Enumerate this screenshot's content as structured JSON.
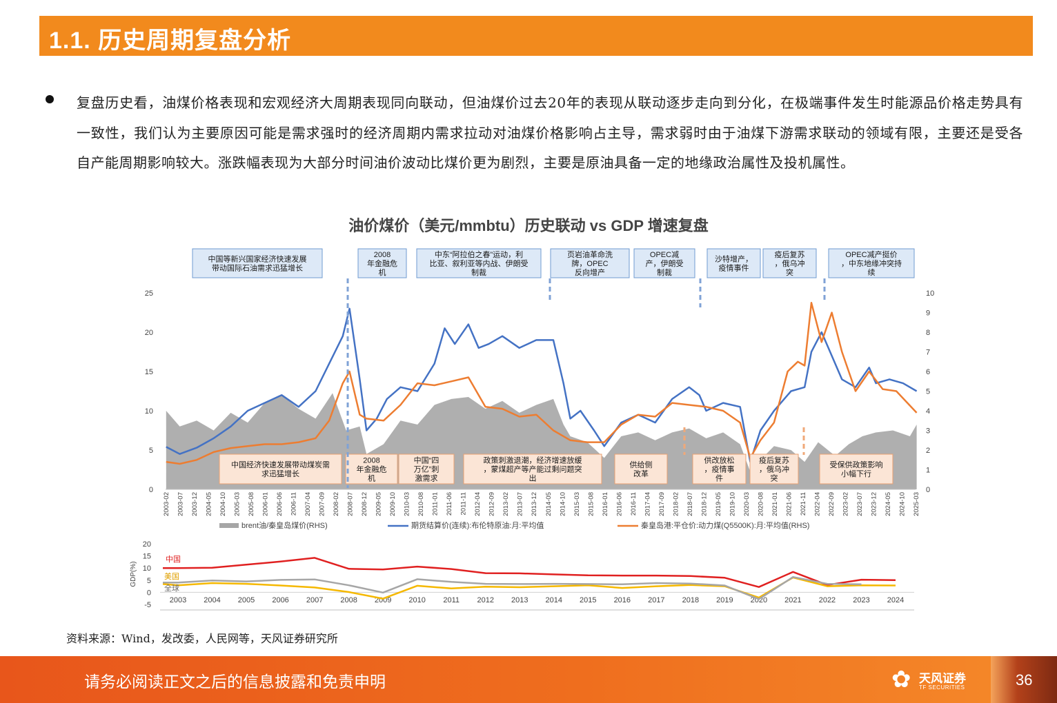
{
  "header": {
    "title": "1.1. 历史周期复盘分析"
  },
  "body": {
    "paragraph": "复盘历史看，油煤价格表现和宏观经济大周期表现同向联动，但油煤价过去20年的表现从联动逐步走向到分化，在极端事件发生时能源品价格走势具有一致性，我们认为主要原因可能是需求强时的经济周期内需求拉动对油煤价格影响占主导，需求弱时由于油煤下游需求联动的领域有限，主要还是受各自产能周期影响较大。涨跌幅表现为大部分时间油价波动比煤价更为剧烈，主要是原油具备一定的地缘政治属性及投机属性。"
  },
  "source": "资料来源：Wind，发改委，人民网等，天风证券研究所",
  "footer": {
    "disclaimer": "请务必阅读正文之后的信息披露和免责申明",
    "brand_cn": "天风证券",
    "brand_en": "TF SECURITIES",
    "page": "36"
  },
  "colors": {
    "accent": "#f28a1d",
    "blue": "#4472c4",
    "orange": "#ed7d31",
    "gray": "#a6a6a6",
    "red": "#e02020",
    "yellow": "#f5b800"
  },
  "chart_data": [
    {
      "type": "line",
      "title": "油价煤价（美元/mmbtu）历史联动 vs GDP 增速复盘",
      "ylim_left": [
        0,
        25
      ],
      "yticks_left": [
        "0",
        "5",
        "10",
        "15",
        "20",
        "25"
      ],
      "ylim_right": [
        0,
        10
      ],
      "yticks_right": [
        "0",
        "1",
        "2",
        "3",
        "4",
        "5",
        "6",
        "7",
        "8",
        "9",
        "10"
      ],
      "xticks": [
        "2003-02",
        "2003-07",
        "2003-12",
        "2004-05",
        "2004-10",
        "2005-03",
        "2005-08",
        "2006-01",
        "2006-06",
        "2006-11",
        "2007-04",
        "2007-09",
        "2008-02",
        "2008-07",
        "2008-12",
        "2009-05",
        "2009-10",
        "2010-03",
        "2010-08",
        "2011-01",
        "2011-06",
        "2011-11",
        "2012-04",
        "2012-09",
        "2013-02",
        "2013-07",
        "2013-12",
        "2014-05",
        "2014-10",
        "2015-03",
        "2015-08",
        "2016-01",
        "2016-06",
        "2016-11",
        "2017-04",
        "2017-09",
        "2018-02",
        "2018-07",
        "2018-12",
        "2019-05",
        "2019-10",
        "2020-03",
        "2020-08",
        "2021-01",
        "2021-06",
        "2021-11",
        "2022-04",
        "2022-09",
        "2023-02",
        "2023-07",
        "2023-12",
        "2024-05",
        "2024-10",
        "2025-03"
      ],
      "series": [
        {
          "name": "brent油/秦皇岛煤价(RHS)",
          "kind": "area",
          "axis": "right",
          "x": [
            2003.1,
            2003.5,
            2004.0,
            2004.5,
            2005.0,
            2005.5,
            2006.0,
            2006.5,
            2007.0,
            2007.5,
            2008.0,
            2008.4,
            2008.8,
            2009.0,
            2009.5,
            2010.0,
            2010.5,
            2011.0,
            2011.5,
            2012.0,
            2012.5,
            2013.0,
            2013.5,
            2014.0,
            2014.5,
            2014.8,
            2015.0,
            2015.5,
            2016.0,
            2016.5,
            2017.0,
            2017.5,
            2018.0,
            2018.5,
            2019.0,
            2019.5,
            2020.0,
            2020.3,
            2020.6,
            2021.0,
            2021.5,
            2021.9,
            2022.3,
            2022.8,
            2023.2,
            2023.6,
            2024.0,
            2024.5,
            2025.0,
            2025.2
          ],
          "values": [
            4.0,
            3.2,
            3.5,
            3.0,
            3.9,
            3.4,
            4.4,
            4.8,
            4.1,
            3.6,
            4.9,
            3.0,
            3.2,
            1.8,
            2.3,
            3.5,
            3.3,
            4.3,
            4.6,
            4.7,
            4.1,
            4.5,
            3.9,
            4.3,
            4.6,
            3.3,
            2.7,
            2.4,
            1.6,
            2.7,
            2.9,
            2.5,
            2.9,
            3.1,
            2.6,
            2.9,
            2.3,
            0.9,
            1.5,
            2.2,
            2.0,
            1.4,
            2.4,
            1.7,
            2.3,
            2.7,
            2.9,
            3.0,
            2.7,
            3.3
          ]
        },
        {
          "name": "期货结算价(连续):布伦特原油:月:平均值",
          "kind": "line",
          "axis": "left",
          "x": [
            2003.1,
            2003.5,
            2004.0,
            2004.5,
            2005.0,
            2005.5,
            2006.0,
            2006.5,
            2007.0,
            2007.5,
            2007.9,
            2008.3,
            2008.5,
            2008.8,
            2009.0,
            2009.3,
            2009.6,
            2010.0,
            2010.5,
            2011.0,
            2011.3,
            2011.6,
            2012.0,
            2012.3,
            2012.6,
            2013.0,
            2013.5,
            2014.0,
            2014.5,
            2014.8,
            2015.0,
            2015.3,
            2015.7,
            2016.0,
            2016.5,
            2017.0,
            2017.5,
            2018.0,
            2018.5,
            2018.8,
            2019.0,
            2019.5,
            2020.0,
            2020.3,
            2020.6,
            2021.0,
            2021.5,
            2021.9,
            2022.1,
            2022.4,
            2022.7,
            2023.0,
            2023.4,
            2023.8,
            2024.0,
            2024.4,
            2024.8,
            2025.2
          ],
          "values": [
            5.4,
            4.5,
            5.3,
            6.5,
            8.0,
            10.0,
            11.0,
            12.0,
            10.5,
            12.5,
            16.0,
            19.5,
            23.0,
            14.0,
            7.5,
            9.0,
            11.5,
            13.0,
            12.5,
            16.0,
            20.5,
            18.5,
            21.0,
            18.0,
            18.5,
            19.5,
            18.0,
            19.0,
            19.0,
            13.5,
            9.0,
            10.0,
            7.5,
            5.5,
            8.5,
            9.5,
            8.5,
            11.5,
            13.0,
            12.0,
            10.0,
            11.0,
            10.5,
            3.5,
            7.5,
            10.0,
            12.5,
            13.0,
            17.5,
            20.0,
            17.0,
            14.0,
            13.0,
            15.5,
            13.5,
            14.0,
            13.5,
            12.5
          ]
        },
        {
          "name": "秦皇岛港:平仓价:动力煤(Q5500K):月:平均值(RHS)",
          "kind": "line",
          "axis": "right",
          "x": [
            2003.1,
            2003.5,
            2004.0,
            2004.5,
            2005.0,
            2005.5,
            2006.0,
            2006.5,
            2007.0,
            2007.5,
            2007.9,
            2008.3,
            2008.5,
            2008.8,
            2009.0,
            2009.5,
            2010.0,
            2010.5,
            2011.0,
            2011.5,
            2012.0,
            2012.5,
            2013.0,
            2013.5,
            2014.0,
            2014.5,
            2015.0,
            2015.5,
            2016.0,
            2016.5,
            2017.0,
            2017.5,
            2018.0,
            2018.5,
            2019.0,
            2019.5,
            2020.0,
            2020.3,
            2020.6,
            2021.0,
            2021.4,
            2021.7,
            2021.9,
            2022.1,
            2022.4,
            2022.7,
            2023.0,
            2023.4,
            2023.8,
            2024.2,
            2024.6,
            2025.2
          ],
          "values": [
            1.4,
            1.3,
            1.5,
            1.9,
            2.1,
            2.2,
            2.3,
            2.3,
            2.4,
            2.6,
            3.5,
            5.4,
            6.0,
            3.8,
            3.6,
            3.5,
            4.3,
            5.4,
            5.3,
            5.5,
            5.7,
            4.2,
            4.1,
            3.7,
            3.8,
            3.0,
            2.5,
            2.4,
            2.4,
            3.3,
            3.8,
            3.7,
            4.4,
            4.3,
            4.2,
            4.0,
            3.4,
            1.6,
            2.5,
            3.4,
            6.0,
            6.5,
            6.3,
            9.5,
            7.5,
            9.0,
            7.0,
            5.0,
            6.0,
            5.1,
            5.0,
            3.9
          ]
        }
      ],
      "annotations_top": [
        "中国等新兴国家经济快速发展带动国际石油需求迅猛增长",
        "2008年金融危机",
        "中东“阿拉伯之春”运动，利比亚、叙利亚等内战、伊朗受制裁",
        "页岩油革命洗牌，OPEC反向增产",
        "OPEC减产，伊朗受制裁",
        "沙特增产，疫情事件",
        "疫后复苏，俄乌冲突",
        "OPEC减产挺价，中东地缘冲突持续"
      ],
      "annotations_bottom": [
        "中国经济快速发展带动煤炭需求迅猛增长",
        "2008年金融危机",
        "中国“四万亿”刺激需求",
        "政策刺激退潮，经济增速放缓，蒙煤超产等产能过剩问题突出",
        "供给侧改革",
        "供改放松，疫情事件",
        "疫后复苏，俄乌冲突",
        "受保供政策影响小幅下行"
      ]
    },
    {
      "type": "line",
      "ylabel": "GDP(%)",
      "ylim": [
        -5,
        20
      ],
      "yticks": [
        "-5",
        "0",
        "5",
        "10",
        "15",
        "20"
      ],
      "categories": [
        "2003",
        "2004",
        "2005",
        "2006",
        "2007",
        "2008",
        "2009",
        "2010",
        "2011",
        "2012",
        "2013",
        "2014",
        "2015",
        "2016",
        "2017",
        "2018",
        "2019",
        "2020",
        "2021",
        "2022",
        "2023",
        "2024"
      ],
      "series": [
        {
          "name": "中国",
          "values": [
            10.0,
            10.1,
            11.4,
            12.7,
            14.2,
            9.7,
            9.4,
            10.6,
            9.6,
            7.9,
            7.8,
            7.4,
            7.0,
            6.9,
            6.9,
            6.7,
            6.0,
            2.2,
            8.4,
            3.0,
            5.2,
            5.0
          ]
        },
        {
          "name": "美国",
          "values": [
            2.9,
            3.8,
            3.5,
            2.8,
            2.0,
            0.1,
            -2.6,
            2.7,
            1.6,
            2.3,
            2.1,
            2.5,
            2.9,
            1.8,
            2.5,
            3.0,
            2.5,
            -2.2,
            6.1,
            2.5,
            2.9,
            2.8
          ]
        },
        {
          "name": "全球",
          "values": [
            4.0,
            4.9,
            4.5,
            5.1,
            5.3,
            2.9,
            -0.1,
            5.4,
            4.3,
            3.5,
            3.4,
            3.5,
            3.4,
            3.3,
            3.8,
            3.6,
            2.8,
            -2.8,
            6.3,
            3.5,
            3.3,
            null
          ]
        }
      ]
    }
  ]
}
